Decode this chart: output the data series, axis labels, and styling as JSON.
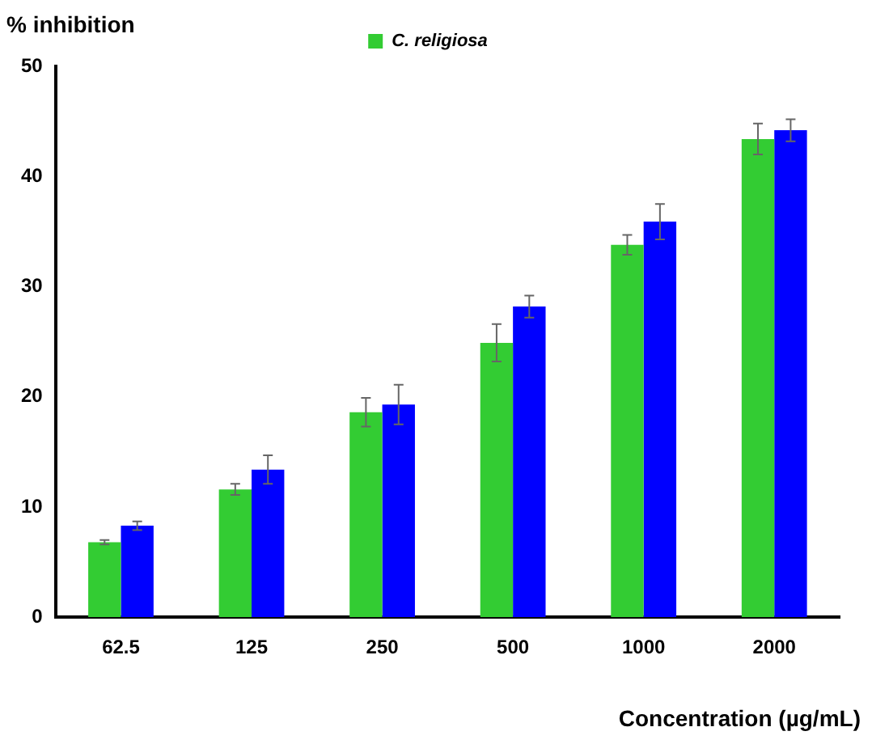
{
  "chart_data": {
    "type": "bar",
    "xlabel": "Concentration (µg/mL)",
    "ylabel": "% inhibition",
    "categories": [
      "62.5",
      "125",
      "250",
      "500",
      "1000",
      "2000"
    ],
    "series": [
      {
        "name": "C. religiosa",
        "color": "#33cc33",
        "values": [
          6.8,
          11.6,
          18.6,
          24.9,
          33.8,
          43.4
        ],
        "errors": [
          0.2,
          0.5,
          1.3,
          1.7,
          0.9,
          1.4
        ]
      },
      {
        "color": "#0000ff",
        "values": [
          8.3,
          13.4,
          19.3,
          28.2,
          35.9,
          44.2
        ],
        "errors": [
          0.4,
          1.3,
          1.8,
          1.0,
          1.6,
          1.0
        ]
      }
    ],
    "ylim": [
      0,
      50
    ],
    "yticks": [
      0,
      10,
      20,
      30,
      40,
      50
    ],
    "grid": false,
    "legend": "top"
  }
}
